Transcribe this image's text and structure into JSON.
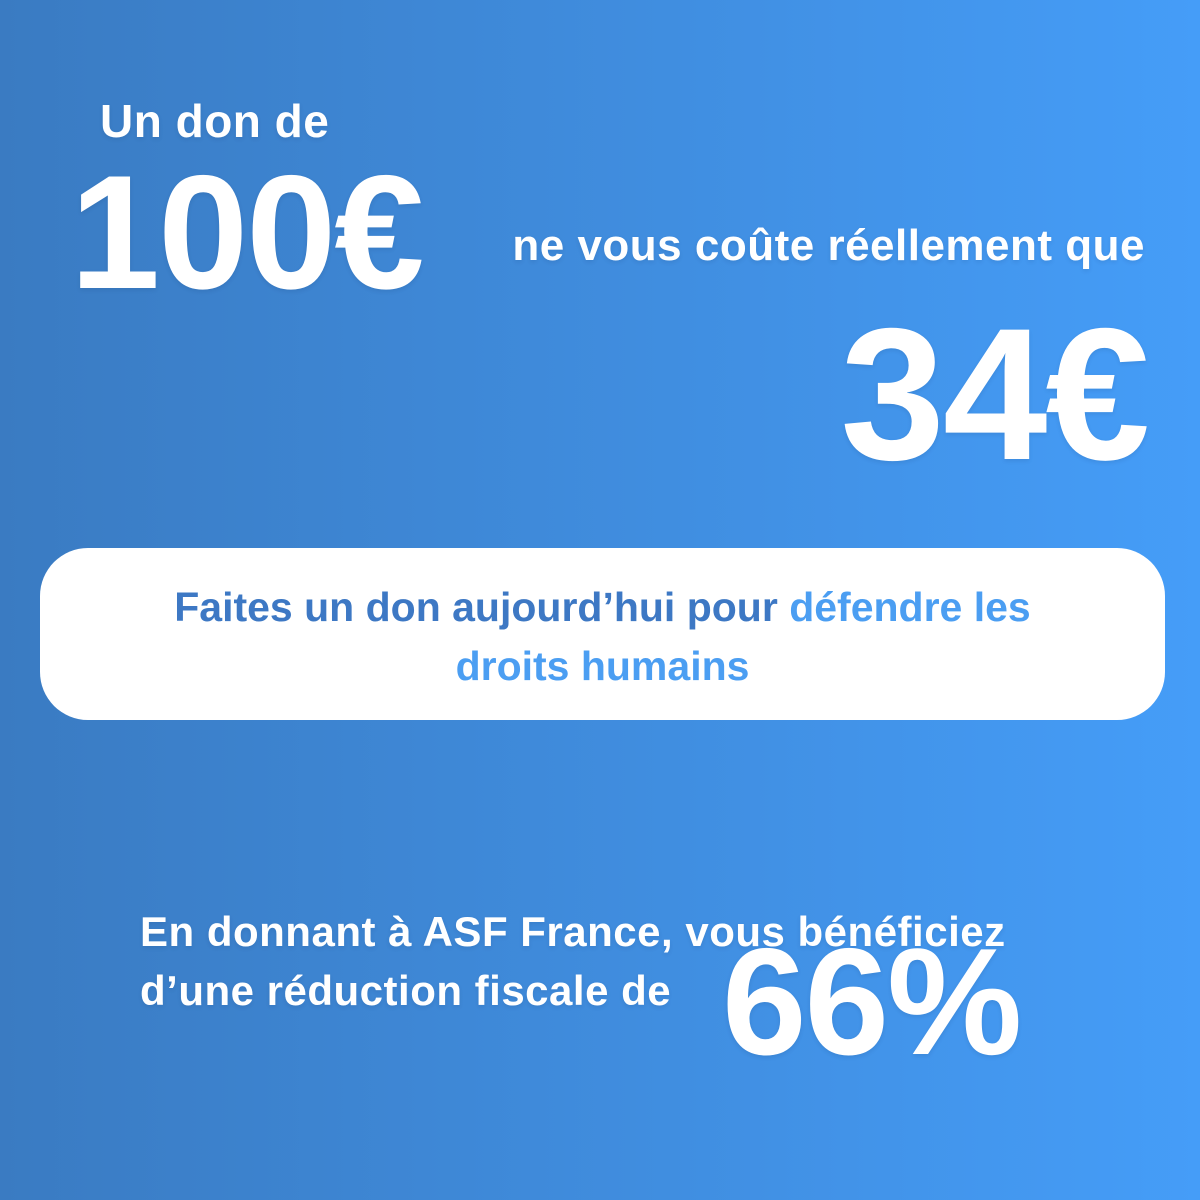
{
  "colors": {
    "gradient_from": "#3a7bc2",
    "gradient_to": "#459df8",
    "cta_text_dark": "#3d78c4",
    "cta_text_light": "#4b9ef2",
    "text_white": "#ffffff",
    "card_background": "#ffffff"
  },
  "hero": {
    "intro": "Un don de",
    "donation_amount": "100€",
    "middle_text": "ne vous coûte réellement que",
    "real_cost": "34€"
  },
  "cta_card": {
    "line1_dark": "Faites un don aujourd’hui pour ",
    "line1_light": "défendre les",
    "line2_light": "droits humains"
  },
  "footer": {
    "line1": "En donnant à ASF France, vous bénéficiez",
    "line2": "d’une réduction fiscale de",
    "percentage": "66%"
  }
}
